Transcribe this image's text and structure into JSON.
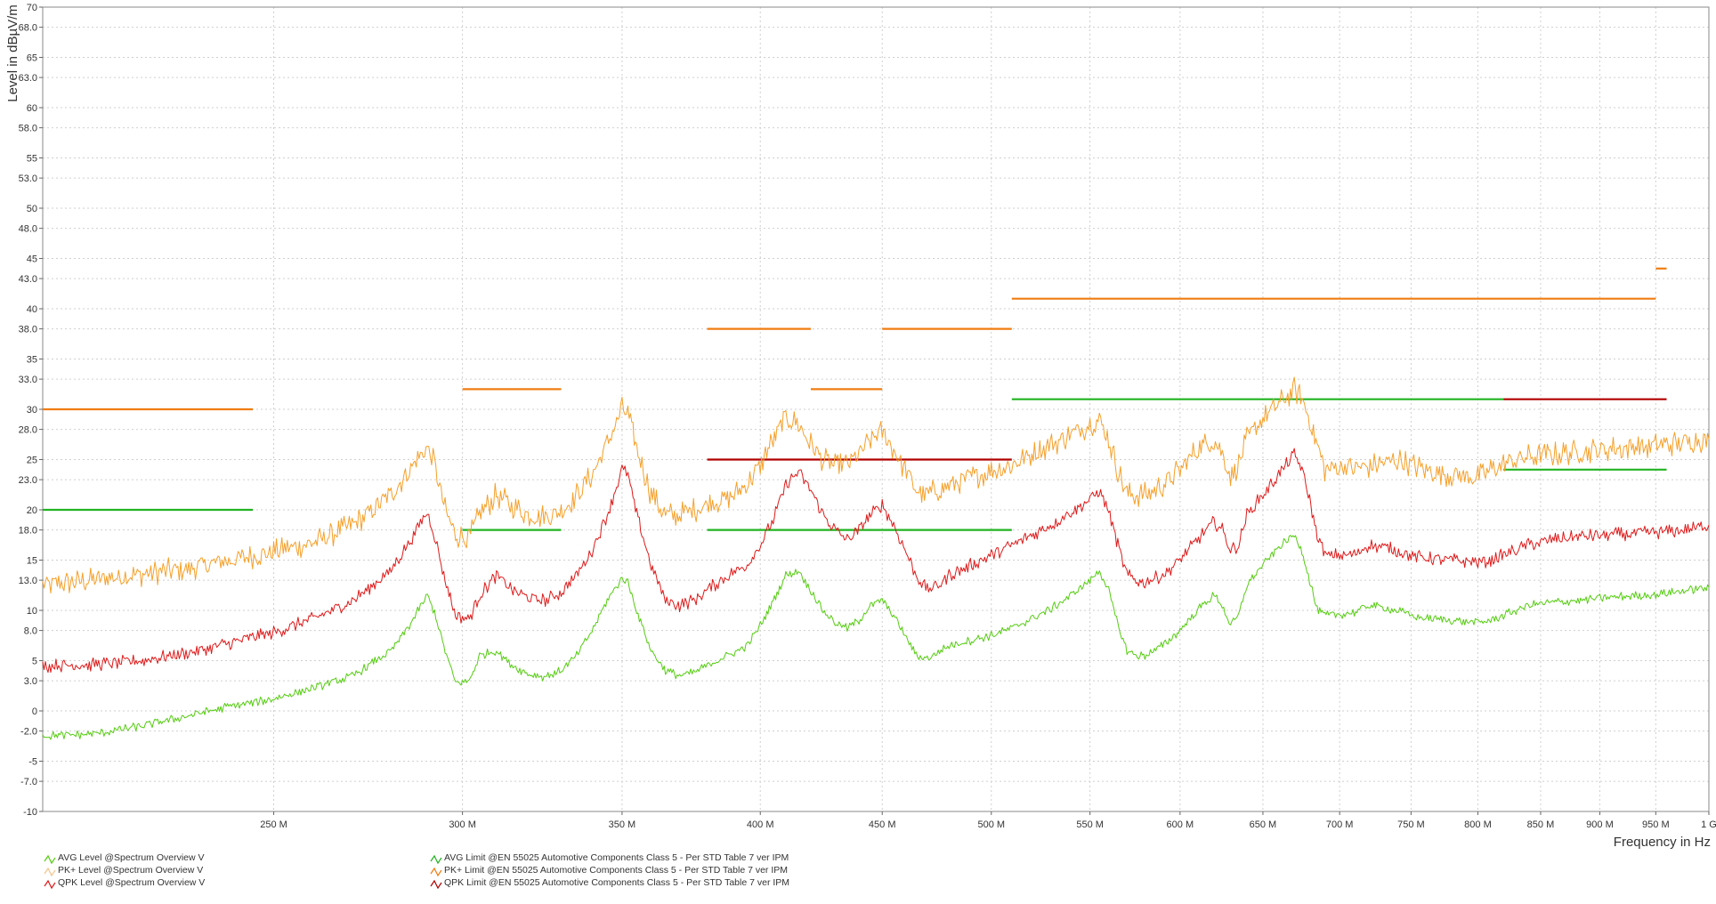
{
  "chart_data": {
    "type": "line",
    "title": "",
    "xlabel": "Frequency in Hz",
    "ylabel": "Level in dBµV/m",
    "xlim": [
      200,
      1000
    ],
    "ylim": [
      -10,
      70
    ],
    "x_scale": "log",
    "grid": true,
    "legend_position": "bottom-left",
    "y_ticks": [
      {
        "value": 70,
        "label": "70"
      },
      {
        "value": 68,
        "label": "68.0"
      },
      {
        "value": 65,
        "label": "65"
      },
      {
        "value": 63,
        "label": "63.0"
      },
      {
        "value": 60,
        "label": "60"
      },
      {
        "value": 58,
        "label": "58.0"
      },
      {
        "value": 55,
        "label": "55"
      },
      {
        "value": 53,
        "label": "53.0"
      },
      {
        "value": 50,
        "label": "50"
      },
      {
        "value": 48,
        "label": "48.0"
      },
      {
        "value": 45,
        "label": "45"
      },
      {
        "value": 43,
        "label": "43.0"
      },
      {
        "value": 40,
        "label": "40"
      },
      {
        "value": 38,
        "label": "38.0"
      },
      {
        "value": 35,
        "label": "35"
      },
      {
        "value": 33,
        "label": "33.0"
      },
      {
        "value": 30,
        "label": "30"
      },
      {
        "value": 28,
        "label": "28.0"
      },
      {
        "value": 25,
        "label": "25"
      },
      {
        "value": 23,
        "label": "23.0"
      },
      {
        "value": 20,
        "label": "20"
      },
      {
        "value": 18,
        "label": "18.0"
      },
      {
        "value": 15,
        "label": "15"
      },
      {
        "value": 13,
        "label": "13.0"
      },
      {
        "value": 10,
        "label": "10"
      },
      {
        "value": 8,
        "label": "8.0"
      },
      {
        "value": 5,
        "label": "5"
      },
      {
        "value": 3,
        "label": "3.0"
      },
      {
        "value": 0,
        "label": "0"
      },
      {
        "value": -2,
        "label": "-2.0"
      },
      {
        "value": -5,
        "label": "-5"
      },
      {
        "value": -7,
        "label": "-7.0"
      },
      {
        "value": -10,
        "label": "-10"
      }
    ],
    "x_ticks": [
      {
        "value": 250,
        "label": "250 M"
      },
      {
        "value": 300,
        "label": "300 M"
      },
      {
        "value": 350,
        "label": "350 M"
      },
      {
        "value": 400,
        "label": "400 M"
      },
      {
        "value": 450,
        "label": "450 M"
      },
      {
        "value": 500,
        "label": "500 M"
      },
      {
        "value": 550,
        "label": "550 M"
      },
      {
        "value": 600,
        "label": "600 M"
      },
      {
        "value": 650,
        "label": "650 M"
      },
      {
        "value": 700,
        "label": "700 M"
      },
      {
        "value": 750,
        "label": "750 M"
      },
      {
        "value": 800,
        "label": "800 M"
      },
      {
        "value": 850,
        "label": "850 M"
      },
      {
        "value": 900,
        "label": "900 M"
      },
      {
        "value": 950,
        "label": "950 M"
      },
      {
        "value": 1000,
        "label": "1 G"
      }
    ],
    "series": [
      {
        "name": "PK+ Level @Spectrum Overview V",
        "color": "#f5a02a",
        "x": [
          200,
          210,
          220,
          230,
          240,
          250,
          260,
          270,
          280,
          285,
          290,
          292,
          295,
          298,
          302,
          305,
          310,
          315,
          320,
          325,
          330,
          335,
          340,
          345,
          350,
          352,
          355,
          360,
          365,
          370,
          375,
          380,
          385,
          390,
          395,
          400,
          405,
          410,
          415,
          420,
          425,
          430,
          435,
          440,
          445,
          450,
          455,
          460,
          465,
          470,
          475,
          480,
          490,
          500,
          510,
          520,
          530,
          540,
          550,
          555,
          560,
          565,
          570,
          575,
          580,
          590,
          600,
          610,
          620,
          625,
          630,
          635,
          640,
          650,
          660,
          670,
          675,
          680,
          685,
          690,
          700,
          710,
          720,
          740,
          750,
          760,
          780,
          800,
          810,
          820,
          830,
          840,
          860,
          880,
          900,
          920,
          940,
          960,
          980,
          1000
        ],
        "y": [
          12.5,
          13,
          13.6,
          14.2,
          15,
          15.8,
          16.8,
          18.5,
          21.5,
          24,
          26.2,
          24.5,
          20,
          17.5,
          17.2,
          19.5,
          21.5,
          20.3,
          19.5,
          19.3,
          19.8,
          21.5,
          23.5,
          26.5,
          30,
          29.5,
          26,
          21.5,
          19.5,
          19.5,
          20,
          20.5,
          21,
          21.5,
          22.5,
          24.5,
          27,
          29.2,
          28.5,
          26.5,
          25,
          24.3,
          24.5,
          25.5,
          27,
          27.8,
          26,
          24,
          22,
          21.5,
          22,
          22.5,
          23.2,
          23.8,
          24.5,
          25.5,
          26.5,
          27.5,
          28.5,
          29,
          27,
          24,
          21.5,
          21.5,
          21.5,
          22.5,
          24,
          26,
          27,
          25.5,
          23.5,
          24.5,
          27,
          29,
          30.5,
          32,
          31,
          29,
          26.5,
          24,
          24.3,
          24.2,
          24.3,
          25,
          24.5,
          24,
          23.5,
          23.2,
          24,
          24.5,
          25,
          25.3,
          25.5,
          25.8,
          26,
          26.2,
          26.3,
          26.5,
          26.8,
          27
        ]
      },
      {
        "name": "QPK Level @Spectrum Overview V",
        "color": "#dd1a1a",
        "x": [
          200,
          210,
          220,
          230,
          240,
          250,
          260,
          270,
          280,
          285,
          290,
          292,
          295,
          298,
          302,
          305,
          310,
          315,
          320,
          325,
          330,
          335,
          340,
          345,
          350,
          352,
          355,
          360,
          365,
          370,
          375,
          380,
          385,
          390,
          395,
          400,
          405,
          410,
          415,
          420,
          425,
          430,
          435,
          440,
          445,
          450,
          455,
          460,
          465,
          470,
          475,
          480,
          490,
          500,
          510,
          520,
          530,
          540,
          550,
          555,
          560,
          565,
          570,
          575,
          580,
          590,
          600,
          610,
          620,
          625,
          630,
          635,
          640,
          650,
          660,
          670,
          675,
          680,
          685,
          690,
          700,
          710,
          720,
          740,
          750,
          760,
          780,
          800,
          810,
          820,
          830,
          840,
          860,
          880,
          900,
          920,
          940,
          960,
          980,
          1000
        ],
        "y": [
          4.5,
          4.6,
          5,
          5.8,
          6.8,
          7.8,
          9.2,
          11,
          14,
          16.8,
          19.8,
          17.5,
          13,
          9.5,
          9.2,
          11.5,
          13.5,
          12,
          11.2,
          11,
          11.8,
          13.5,
          16,
          19.5,
          24,
          23.5,
          19.5,
          14.5,
          11,
          10.5,
          11,
          12,
          13,
          13.8,
          14.5,
          16.5,
          19,
          22.5,
          23.8,
          22,
          19.5,
          18,
          17,
          18,
          19.5,
          20.5,
          18.5,
          16,
          13.5,
          12,
          12.5,
          13.5,
          14.5,
          15.5,
          16.5,
          17.5,
          18.5,
          19.8,
          21,
          22,
          20,
          16.5,
          13.5,
          13,
          12.8,
          13.5,
          15,
          17,
          18.8,
          18,
          16,
          16.5,
          19.5,
          21.5,
          23.5,
          25.5,
          24,
          21,
          17.5,
          15.5,
          15.5,
          15.5,
          16.5,
          16,
          15.5,
          15.2,
          15,
          14.8,
          15,
          15.5,
          16,
          16.5,
          17,
          17.3,
          17.5,
          17.6,
          17.7,
          17.8,
          18,
          18.5
        ]
      },
      {
        "name": "AVG Level @Spectrum Overview V",
        "color": "#55cc11",
        "x": [
          200,
          210,
          220,
          230,
          240,
          250,
          260,
          270,
          280,
          285,
          290,
          292,
          295,
          298,
          302,
          305,
          310,
          315,
          320,
          325,
          330,
          335,
          340,
          345,
          350,
          352,
          355,
          360,
          365,
          370,
          375,
          380,
          385,
          390,
          395,
          400,
          405,
          410,
          415,
          420,
          425,
          430,
          435,
          440,
          445,
          450,
          455,
          460,
          465,
          470,
          475,
          480,
          490,
          500,
          510,
          520,
          530,
          540,
          550,
          555,
          560,
          565,
          570,
          575,
          580,
          590,
          600,
          610,
          620,
          625,
          630,
          635,
          640,
          650,
          660,
          670,
          675,
          680,
          685,
          690,
          700,
          710,
          720,
          740,
          750,
          760,
          780,
          800,
          810,
          820,
          830,
          840,
          860,
          880,
          900,
          920,
          940,
          960,
          980,
          1000
        ],
        "y": [
          -2.5,
          -2.3,
          -1.5,
          -0.5,
          0.5,
          1.2,
          2.3,
          3.5,
          6,
          8.5,
          11.5,
          9.8,
          6,
          2.8,
          3,
          5.5,
          6,
          4.5,
          3.6,
          3.4,
          4,
          5.5,
          8,
          11,
          13.2,
          12.8,
          10,
          6,
          4,
          3.5,
          3.8,
          4.5,
          5.2,
          5.8,
          6.5,
          8.5,
          11,
          13.5,
          14,
          12,
          10,
          8.8,
          8.2,
          9,
          10.5,
          11,
          9.5,
          7.5,
          5.5,
          5.2,
          5.8,
          6.5,
          7,
          7.5,
          8.2,
          9.2,
          10.2,
          11.5,
          13,
          14,
          12,
          8.5,
          6,
          5.5,
          5.5,
          6.5,
          8,
          10,
          11.5,
          10.5,
          8.5,
          9.5,
          12.5,
          14.5,
          16.3,
          17.5,
          16,
          13,
          10,
          9.5,
          9.6,
          9.8,
          10.5,
          10,
          9.5,
          9.2,
          9,
          8.8,
          9,
          9.5,
          10,
          10.5,
          10.8,
          11,
          11.2,
          11.4,
          11.5,
          11.7,
          12,
          12.3
        ]
      }
    ],
    "limits": [
      {
        "name": "PK+ Limit @EN 55025 Automotive Components Class 5 - Per STD Table 7 ver IPM",
        "color": "#f07c10",
        "segments": [
          [
            200,
            245,
            30
          ],
          [
            300,
            330,
            32
          ],
          [
            380,
            420,
            38
          ],
          [
            420,
            450,
            32
          ],
          [
            450,
            510,
            38
          ],
          [
            510,
            950,
            41
          ],
          [
            950,
            960,
            44
          ]
        ]
      },
      {
        "name": "QPK Limit @EN 55025 Automotive Components Class 5 - Per STD Table 7 ver IPM",
        "color": "#b10000",
        "segments": [
          [
            380,
            510,
            25
          ],
          [
            820,
            960,
            31
          ]
        ]
      },
      {
        "name": "AVG Limit @EN 55025 Automotive Components Class 5 - Per STD Table 7 ver IPM",
        "color": "#21b321",
        "segments": [
          [
            200,
            245,
            20
          ],
          [
            300,
            330,
            18
          ],
          [
            380,
            510,
            18
          ],
          [
            510,
            820,
            31
          ],
          [
            820,
            960,
            24
          ]
        ]
      }
    ]
  },
  "legend": {
    "left": [
      {
        "label": "AVG Level @Spectrum Overview V",
        "color": "#55cc11"
      },
      {
        "label": "PK+ Level @Spectrum Overview V",
        "color": "#f5c48a"
      },
      {
        "label": "QPK Level @Spectrum Overview V",
        "color": "#dd1a1a"
      }
    ],
    "right": [
      {
        "label": "AVG Limit @EN 55025 Automotive Components Class 5 - Per STD Table 7 ver IPM",
        "color": "#21b321"
      },
      {
        "label": "PK+ Limit @EN 55025 Automotive Components Class 5 - Per STD Table 7 ver IPM",
        "color": "#f07c10"
      },
      {
        "label": "QPK Limit @EN 55025 Automotive Components Class 5 - Per STD Table 7 ver IPM",
        "color": "#b10000"
      }
    ]
  }
}
